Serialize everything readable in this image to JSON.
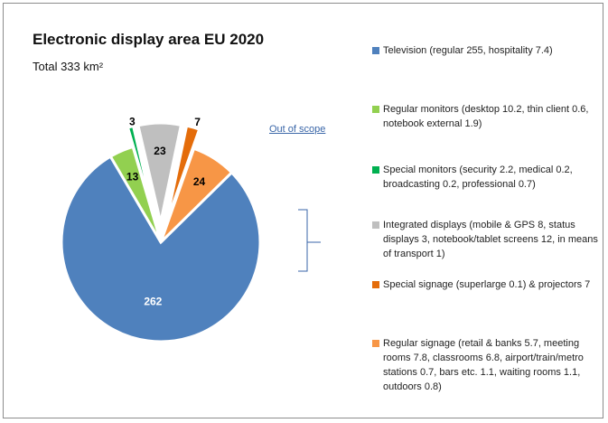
{
  "title": "Electronic display area EU 2020",
  "subtitle": "Total 333 km²",
  "out_of_scope_label": "Out of scope",
  "chart_data": {
    "type": "pie",
    "title": "Electronic display area EU 2020",
    "subtitle": "Total 333 km²",
    "total": 333,
    "unit": "km²",
    "slices": [
      {
        "label": "Television (regular 255, hospitality 7.4)",
        "value": 262,
        "value_label": "262",
        "color": "#4f81bd",
        "exploded": false
      },
      {
        "label": "Regular monitors (desktop 10.2, thin client 0.6, notebook external 1.9)",
        "value": 13,
        "value_label": "13",
        "color": "#92d050",
        "exploded": false
      },
      {
        "label": "Special monitors (security 2.2, medical 0.2, broadcasting 0.2, professional 0.7)",
        "value": 3,
        "value_label": "3",
        "color": "#00b050",
        "exploded": true
      },
      {
        "label": "Integrated displays (mobile & GPS 8, status displays 3, notebook/tablet screens 12, in means of transport 1)",
        "value": 23,
        "value_label": "23",
        "color": "#bfbfbf",
        "exploded": true
      },
      {
        "label": "Special signage (superlarge 0.1) & projectors 7",
        "value": 7,
        "value_label": "7",
        "color": "#e46c0a",
        "exploded": true
      },
      {
        "label": "Regular signage (retail & banks 5.7, meeting rooms 7.8, classrooms 6.8, airport/train/metro stations 0.7, bars etc. 1.1, waiting rooms 1.1, outdoors 0.8)",
        "value": 24,
        "value_label": "24",
        "color": "#f79646",
        "exploded": false
      }
    ],
    "legend_position": "right",
    "annotation": "Out of scope"
  }
}
